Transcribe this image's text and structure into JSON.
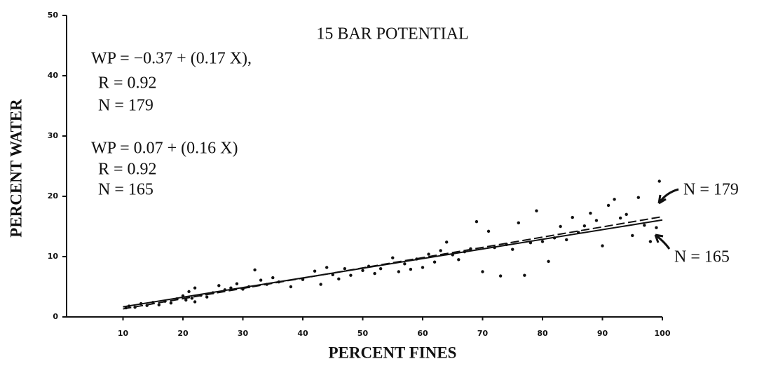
{
  "chart_data": {
    "type": "scatter",
    "title": "15 BAR POTENTIAL",
    "x_label": "PERCENT FINES",
    "y_label": "PERCENT WATER",
    "xlim": [
      0,
      100
    ],
    "xticks": [
      10,
      20,
      30,
      40,
      50,
      60,
      70,
      80,
      90,
      100
    ],
    "ylim": [
      0,
      50
    ],
    "yticks": [
      0,
      10,
      20,
      30,
      40,
      50
    ],
    "points": {
      "color": "#111",
      "x": [
        10.5,
        11,
        12,
        13,
        14,
        15,
        16,
        17,
        18,
        19,
        20,
        20.5,
        21,
        21.5,
        22,
        22,
        23,
        24,
        25,
        26,
        27,
        28,
        29,
        30,
        31,
        32,
        33,
        34,
        35,
        36,
        38,
        40,
        42,
        43,
        44,
        45,
        46,
        47,
        48,
        50,
        51,
        52,
        53,
        55,
        56,
        57,
        58,
        59,
        60,
        61,
        62,
        63,
        64,
        65,
        66,
        67,
        68,
        69,
        70,
        71,
        72,
        73,
        74,
        75,
        76,
        77,
        78,
        79,
        80,
        81,
        82,
        83,
        84,
        85,
        86,
        87,
        88,
        89,
        90,
        91,
        92,
        93,
        94,
        95,
        96,
        97,
        98,
        99,
        99.5
      ],
      "values": [
        1.5,
        1.8,
        1.6,
        2.2,
        1.9,
        2.4,
        2.0,
        2.6,
        2.3,
        3.0,
        3.5,
        2.8,
        4.2,
        3.1,
        4.8,
        2.5,
        3.6,
        3.3,
        4.0,
        5.2,
        4.5,
        4.8,
        5.5,
        4.6,
        5.0,
        7.8,
        6.1,
        5.4,
        6.5,
        5.8,
        5.0,
        6.2,
        7.6,
        5.4,
        8.2,
        7.0,
        6.3,
        8.0,
        6.9,
        7.7,
        8.4,
        7.2,
        8.0,
        9.8,
        7.5,
        8.8,
        7.9,
        9.6,
        8.2,
        10.4,
        9.1,
        11.0,
        12.4,
        10.3,
        9.5,
        10.8,
        11.3,
        15.8,
        7.5,
        14.2,
        11.5,
        6.8,
        12.0,
        11.2,
        15.6,
        6.9,
        12.3,
        17.6,
        12.5,
        9.2,
        13.1,
        15.0,
        12.8,
        16.5,
        14.0,
        15.1,
        17.2,
        16.0,
        11.8,
        18.5,
        19.5,
        16.4,
        17.0,
        13.5,
        19.8,
        15.2,
        12.5,
        14.8,
        22.5
      ]
    },
    "series": [
      {
        "name": "N = 179",
        "color": "#111",
        "dashed": true,
        "x": [
          10,
          100
        ],
        "values": [
          1.33,
          16.63
        ]
      },
      {
        "name": "N = 165",
        "color": "#111",
        "dashed": false,
        "x": [
          10,
          100
        ],
        "values": [
          1.67,
          16.07
        ]
      }
    ],
    "annotations": [
      [
        "WP = −0.37 + (0.17 X),",
        "R = 0.92",
        "N = 179"
      ],
      [
        "WP = 0.07 + (0.16 X)",
        "R = 0.92",
        "N = 165"
      ]
    ]
  }
}
